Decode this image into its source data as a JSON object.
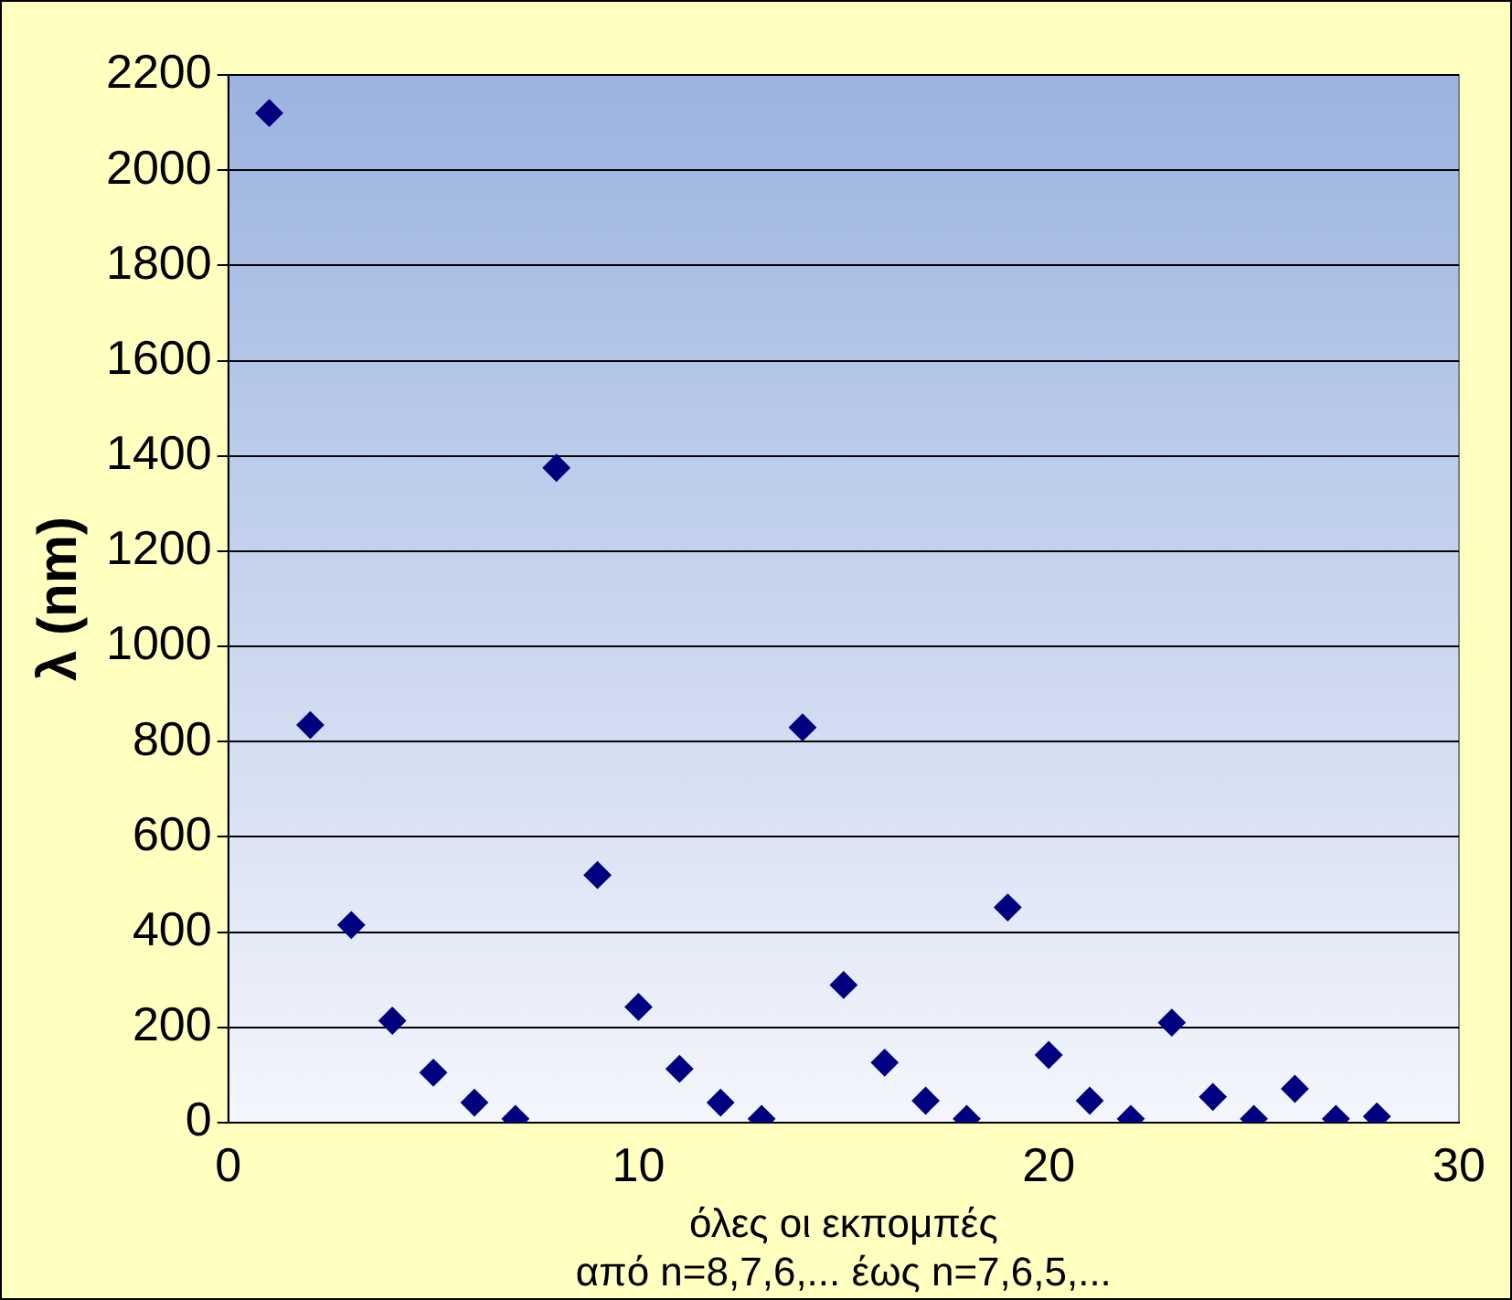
{
  "chart_data": {
    "type": "scatter",
    "xlabel": "όλες οι εκπομπές\nαπό n=8,7,6,... έως n=7,6,5,...",
    "ylabel": "λ (nm)",
    "x": [
      1,
      2,
      3,
      4,
      5,
      6,
      7,
      8,
      9,
      10,
      11,
      12,
      13,
      14,
      15,
      16,
      17,
      18,
      19,
      20,
      21,
      22,
      23,
      24,
      25,
      26,
      27,
      28
    ],
    "series": [
      {
        "color": "#000080",
        "values": [
          2120,
          835,
          415,
          214,
          105,
          42,
          8,
          1375,
          520,
          243,
          113,
          42,
          8,
          830,
          289,
          126,
          46,
          8,
          452,
          142,
          46,
          8,
          210,
          54,
          8,
          71,
          8,
          13
        ]
      }
    ],
    "xlim": [
      0,
      30
    ],
    "xticks": [
      0,
      10,
      20,
      30
    ],
    "ylim": [
      0,
      2200
    ],
    "yticks": [
      0,
      200,
      400,
      600,
      800,
      1000,
      1200,
      1400,
      1600,
      1800,
      2000,
      2200
    ],
    "grid": "y",
    "legend": false,
    "marker": "diamond"
  }
}
